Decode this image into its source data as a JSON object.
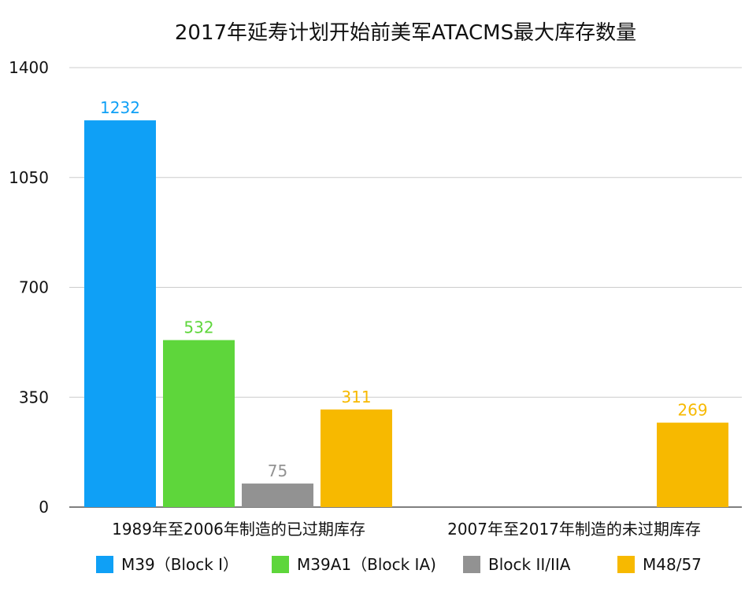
{
  "chart_data": {
    "type": "bar",
    "title": "2017年延寿计划开始前美军ATACMS最大库存数量",
    "xlabel": "",
    "ylabel": "",
    "ylim": [
      0,
      1400
    ],
    "yticks": [
      0,
      350,
      700,
      1050,
      1400
    ],
    "grid": true,
    "legend_position": "bottom",
    "categories": [
      "1989年至2006年制造的已过期库存",
      "2007年至2017年制造的未过期库存"
    ],
    "series": [
      {
        "name": "M39（Block I）",
        "color": "#0fa0f6",
        "values": [
          1232,
          null
        ]
      },
      {
        "name": "M39A1（Block IA)",
        "color": "#5ed63b",
        "values": [
          532,
          null
        ]
      },
      {
        "name": "Block II/IIA",
        "color": "#929292",
        "values": [
          75,
          null
        ]
      },
      {
        "name": "M48/57",
        "color": "#f7b900",
        "values": [
          311,
          269
        ]
      }
    ]
  }
}
